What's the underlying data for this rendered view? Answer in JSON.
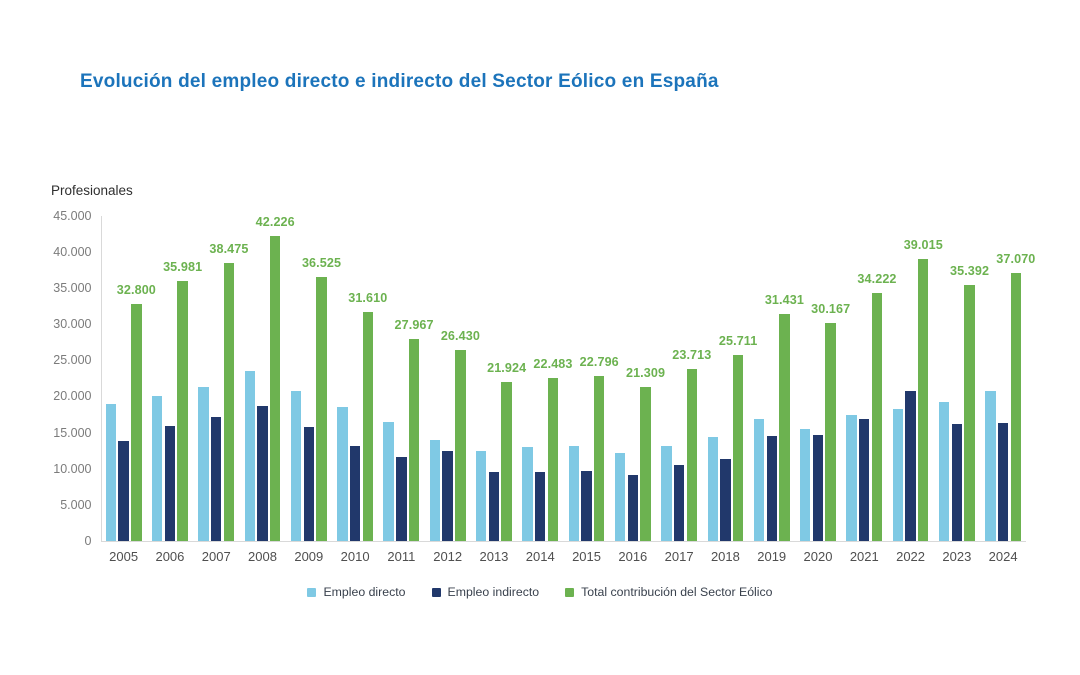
{
  "chart": {
    "title": "Evolución del empleo directo e indirecto del Sector Eólico en España",
    "y_axis_title": "Profesionales"
  },
  "chart_data": {
    "type": "bar",
    "title": "Evolución del empleo directo e indirecto del Sector Eólico en España",
    "xlabel": "",
    "ylabel": "Profesionales",
    "ylim": [
      0,
      45000
    ],
    "y_tick_step": 5000,
    "y_tick_labels": [
      "0",
      "5.000",
      "10.000",
      "15.000",
      "20.000",
      "25.000",
      "30.000",
      "35.000",
      "40.000",
      "45.000"
    ],
    "grid": false,
    "legend_position": "bottom",
    "categories": [
      "2005",
      "2006",
      "2007",
      "2008",
      "2009",
      "2010",
      "2011",
      "2012",
      "2013",
      "2014",
      "2015",
      "2016",
      "2017",
      "2018",
      "2019",
      "2020",
      "2021",
      "2022",
      "2023",
      "2024"
    ],
    "series": [
      {
        "name": "Empleo directo",
        "color": "#7fc9e4",
        "values": [
          19000,
          20100,
          21300,
          23500,
          20700,
          18500,
          16400,
          14000,
          12400,
          13000,
          13100,
          12200,
          13200,
          14400,
          16900,
          15500,
          17400,
          18300,
          19200,
          20700
        ]
      },
      {
        "name": "Empleo indirecto",
        "color": "#21386b",
        "values": [
          13800,
          15881,
          17175,
          18726,
          15825,
          13110,
          11567,
          12430,
          9524,
          9483,
          9696,
          9109,
          10513,
          11311,
          14531,
          14667,
          16822,
          20715,
          16192,
          16370
        ]
      },
      {
        "name": "Total contribución del Sector Eólico",
        "color": "#6cb250",
        "values": [
          32800,
          35981,
          38475,
          42226,
          36525,
          31610,
          27967,
          26430,
          21924,
          22483,
          22796,
          21309,
          23713,
          25711,
          31431,
          30167,
          34222,
          39015,
          35392,
          37070
        ],
        "data_labels": [
          "32.800",
          "35.981",
          "38.475",
          "42.226",
          "36.525",
          "31.610",
          "27.967",
          "26.430",
          "21.924",
          "22.483",
          "22.796",
          "21.309",
          "23.713",
          "25.711",
          "31.431",
          "30.167",
          "34.222",
          "39.015",
          "35.392",
          "37.070"
        ],
        "data_label_color": "#6cb250"
      }
    ]
  },
  "colors": {
    "title": "#1c74bb",
    "axis_line": "#d9d9d9",
    "y_tick_label": "#7b7b7b",
    "x_tick_label": "#4f4f4f"
  }
}
